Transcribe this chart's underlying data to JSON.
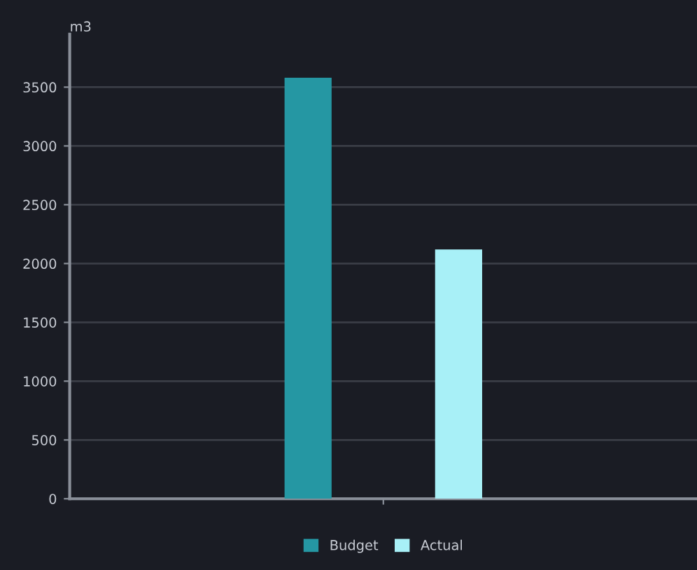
{
  "chart_data": {
    "type": "bar",
    "ylabel": "m3",
    "categories": [
      null
    ],
    "series": [
      {
        "name": "Budget",
        "color": "#2597a3",
        "values": [
          3580
        ]
      },
      {
        "name": "Actual",
        "color": "#a8f0f7",
        "values": [
          2120
        ]
      }
    ],
    "ylim": [
      0,
      3950
    ],
    "yticks": [
      0,
      500,
      1000,
      1500,
      2000,
      2500,
      3000,
      3500
    ],
    "grid": "y",
    "legend": "bottom"
  }
}
